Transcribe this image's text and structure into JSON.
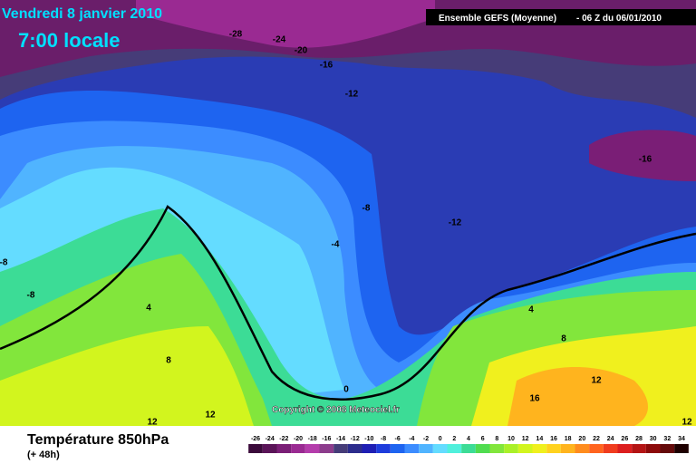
{
  "header": {
    "date": "Vendredi 8 janvier 2010",
    "time": "7:00 locale",
    "model": "Ensemble GEFS (Moyenne)",
    "run": "- 06 Z du 06/01/2010"
  },
  "map": {
    "contour_labels": [
      -28,
      -24,
      -20,
      -16,
      -12,
      -16,
      -8,
      -12,
      -4,
      -8,
      -8,
      4,
      4,
      8,
      8,
      12,
      0,
      16,
      12,
      12,
      12
    ],
    "copyright": "Copyright © 2008 Meteociel.fr"
  },
  "footer": {
    "title": "Température 850hPa",
    "subtitle": "(+ 48h)"
  },
  "legend": {
    "values": [
      -26,
      -24,
      -22,
      -20,
      -18,
      -16,
      -14,
      -12,
      -10,
      -8,
      -6,
      -4,
      -2,
      0,
      2,
      4,
      6,
      8,
      10,
      12,
      14,
      16,
      18,
      20,
      22,
      24,
      26,
      28,
      30,
      32,
      34
    ],
    "colors": [
      "#3a0a3a",
      "#5a1458",
      "#7a1e76",
      "#9a2a92",
      "#b43cab",
      "#8c3c8c",
      "#463c78",
      "#2c2c8c",
      "#1e1eb4",
      "#1e3cdc",
      "#1e64f0",
      "#3c8cff",
      "#50b4ff",
      "#64dcff",
      "#50f0dc",
      "#3cdc96",
      "#50dc50",
      "#82e63c",
      "#aaf028",
      "#d2f51e",
      "#f0f01e",
      "#ffd21e",
      "#ffb41e",
      "#ff8c1e",
      "#ff641e",
      "#f03c1e",
      "#dc1e1e",
      "#b41414",
      "#8c0a0a",
      "#640a0a",
      "#1e0000"
    ]
  }
}
